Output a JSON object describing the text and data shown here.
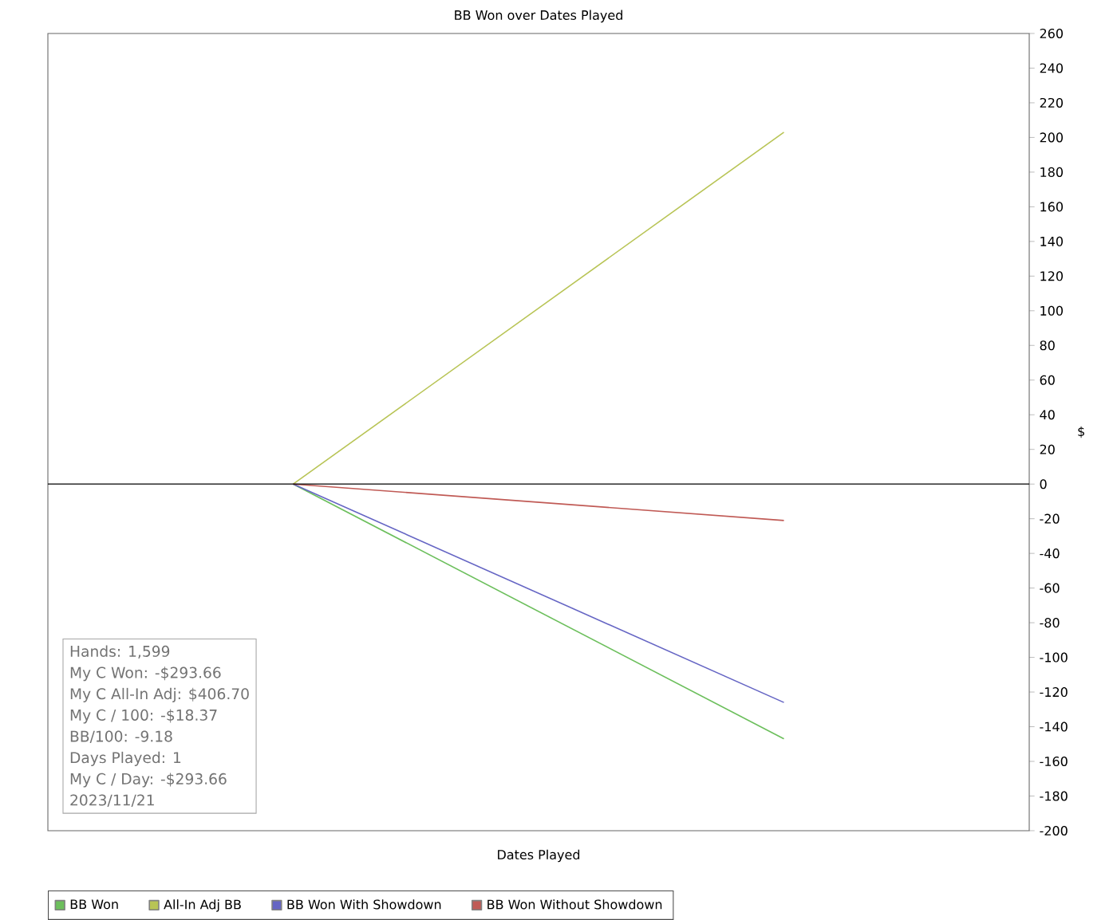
{
  "chart_data": {
    "type": "line",
    "title": "BB Won over Dates Played",
    "xlabel": "Dates Played",
    "ylabel": "$",
    "categories": [
      null,
      null
    ],
    "series": [
      {
        "name": "BB Won",
        "color": "#6cbf5c",
        "values": [
          0,
          -147
        ]
      },
      {
        "name": "All-In Adj BB",
        "color": "#b8c455",
        "values": [
          0,
          203
        ]
      },
      {
        "name": "BB Won With Showdown",
        "color": "#6565c4",
        "values": [
          0,
          -126
        ]
      },
      {
        "name": "BB Won Without Showdown",
        "color": "#c05a55",
        "values": [
          0,
          -21
        ]
      }
    ],
    "ylim": [
      -200,
      260
    ],
    "yticks": [
      -200,
      -180,
      -160,
      -140,
      -120,
      -100,
      -80,
      -60,
      -40,
      -20,
      0,
      20,
      40,
      60,
      80,
      100,
      120,
      140,
      160,
      180,
      200,
      220,
      240,
      260
    ],
    "ref_lines": [
      {
        "axis": "y",
        "value": 0,
        "color": "#000000"
      }
    ],
    "legend": "bottom",
    "grid": false,
    "marker": "none",
    "line_style": "solid",
    "annotations": [
      "Hands: 1,599",
      "My C Won: -$293.66",
      "My C All-In Adj: $406.70",
      "My C / 100: -$18.37",
      "BB/100: -9.18",
      "Days Played: 1",
      "My C / Day: -$293.66",
      "2023/11/21"
    ]
  }
}
